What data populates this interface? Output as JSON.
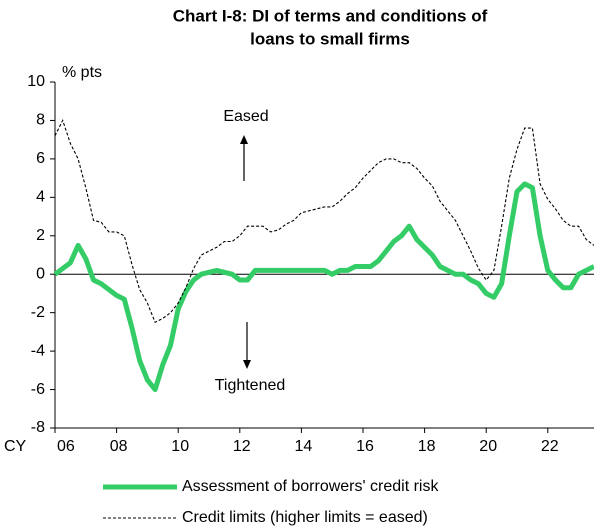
{
  "chart_data": {
    "type": "line",
    "title": [
      "Chart I-8: DI of terms and conditions of",
      "loans to small firms"
    ],
    "y_axis_label": "% pts",
    "x_axis_label": "CY",
    "annotations": [
      "Eased",
      "Tightened"
    ],
    "x": [
      2006,
      2006.25,
      2006.5,
      2006.75,
      2007,
      2007.25,
      2007.5,
      2007.75,
      2008,
      2008.25,
      2008.5,
      2008.75,
      2009,
      2009.25,
      2009.5,
      2009.75,
      2010,
      2010.25,
      2010.5,
      2010.75,
      2011,
      2011.25,
      2011.5,
      2011.75,
      2012,
      2012.25,
      2012.5,
      2012.75,
      2013,
      2013.25,
      2013.5,
      2013.75,
      2014,
      2014.25,
      2014.5,
      2014.75,
      2015,
      2015.25,
      2015.5,
      2015.75,
      2016,
      2016.25,
      2016.5,
      2016.75,
      2017,
      2017.25,
      2017.5,
      2017.75,
      2018,
      2018.25,
      2018.5,
      2018.75,
      2019,
      2019.25,
      2019.5,
      2019.75,
      2020,
      2020.25,
      2020.5,
      2020.75,
      2021,
      2021.25,
      2021.5,
      2021.75,
      2022,
      2022.25,
      2022.5,
      2022.75,
      2023,
      2023.25,
      2023.5
    ],
    "series": [
      {
        "name": "Assessment of borrowers' credit risk",
        "color": "#33cc66",
        "style": "solid",
        "values": [
          0,
          0.3,
          0.6,
          1.5,
          0.8,
          -0.3,
          -0.5,
          -0.8,
          -1.1,
          -1.3,
          -2.8,
          -4.5,
          -5.5,
          -6,
          -4.7,
          -3.7,
          -1.8,
          -0.9,
          -0.3,
          0,
          0.1,
          0.2,
          0.1,
          0,
          -0.3,
          -0.3,
          0.2,
          0.2,
          0.2,
          0.2,
          0.2,
          0.2,
          0.2,
          0.2,
          0.2,
          0.2,
          0,
          0.2,
          0.2,
          0.4,
          0.4,
          0.4,
          0.7,
          1.2,
          1.7,
          2,
          2.5,
          1.8,
          1.4,
          1,
          0.4,
          0.2,
          0,
          0,
          -0.3,
          -0.5,
          -1,
          -1.2,
          -0.5,
          2,
          4.3,
          4.7,
          4.5,
          2,
          0.2,
          -0.3,
          -0.7,
          -0.7,
          0,
          0.2,
          0.4
        ]
      },
      {
        "name": "Credit limits (higher limits = eased)",
        "color": "#000000",
        "style": "dashed",
        "values": [
          7.2,
          8,
          6.8,
          6,
          4.5,
          2.8,
          2.7,
          2.2,
          2.2,
          2,
          0.5,
          -0.8,
          -1.5,
          -2.5,
          -2.3,
          -2,
          -1.5,
          -0.7,
          0.3,
          1,
          1.2,
          1.4,
          1.7,
          1.7,
          2,
          2.5,
          2.5,
          2.5,
          2.2,
          2.3,
          2.6,
          2.8,
          3.2,
          3.3,
          3.4,
          3.5,
          3.5,
          3.8,
          4.2,
          4.5,
          5,
          5.4,
          5.8,
          6,
          6,
          5.8,
          5.8,
          5.5,
          5,
          4.6,
          3.8,
          3.3,
          2.8,
          2,
          1.2,
          0.3,
          -0.3,
          0.2,
          2.5,
          5,
          6.5,
          7.6,
          7.6,
          4.7,
          3.9,
          3.4,
          2.8,
          2.5,
          2.5,
          1.8,
          1.5
        ]
      }
    ],
    "xlim": [
      2006,
      2023.5
    ],
    "xticks": [
      {
        "value": 2006,
        "label": "06"
      },
      {
        "value": 2008,
        "label": "08"
      },
      {
        "value": 2010,
        "label": "10"
      },
      {
        "value": 2012,
        "label": "12"
      },
      {
        "value": 2014,
        "label": "14"
      },
      {
        "value": 2016,
        "label": "16"
      },
      {
        "value": 2018,
        "label": "18"
      },
      {
        "value": 2020,
        "label": "20"
      },
      {
        "value": 2022,
        "label": "22"
      }
    ],
    "ylim": [
      -8,
      10
    ],
    "yticks": [
      -8,
      -6,
      -4,
      -2,
      0,
      2,
      4,
      6,
      8,
      10
    ],
    "grid": false
  }
}
